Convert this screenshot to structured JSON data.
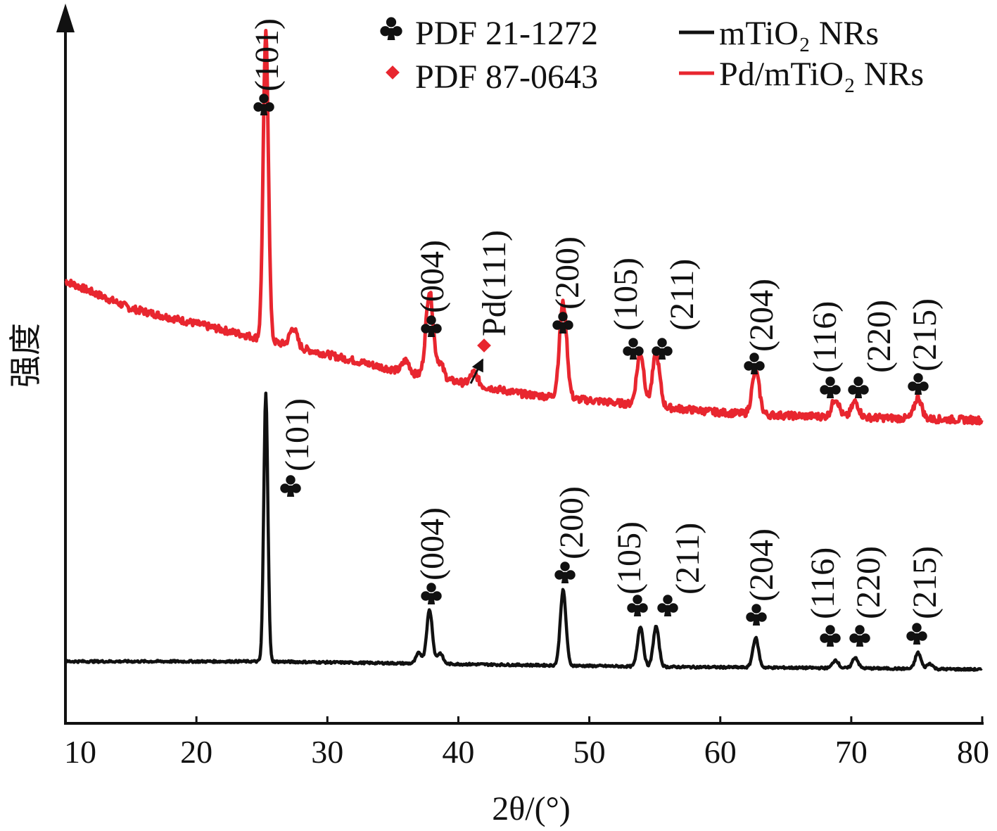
{
  "chart_data": {
    "type": "line",
    "xlabel": "2θ/(°)",
    "ylabel": "强度",
    "xlim": [
      10,
      80
    ],
    "x_ticks": [
      "10",
      "20",
      "30",
      "40",
      "50",
      "60",
      "70",
      "80"
    ],
    "y_ticks_shown": false,
    "grid": false,
    "legend": {
      "placement": "top-right",
      "markers": [
        {
          "label": "PDF 21-1272",
          "symbol": "club",
          "color": "#111111"
        },
        {
          "label": "PDF 87-0643",
          "symbol": "diamond",
          "color": "#e8262f"
        }
      ],
      "lines": [
        {
          "label": "mTiO₂ NRs",
          "color": "#111111"
        },
        {
          "label": "Pd/mTiO₂ NRs",
          "color": "#e8262f"
        }
      ]
    },
    "series": [
      {
        "name": "Pd/mTiO₂ NRs",
        "color": "#e8262f",
        "baseline_points": [
          [
            10,
            0.48
          ],
          [
            15,
            0.39
          ],
          [
            20,
            0.34
          ],
          [
            24,
            0.3
          ],
          [
            28,
            0.26
          ],
          [
            32,
            0.22
          ],
          [
            36,
            0.18
          ],
          [
            40,
            0.15
          ],
          [
            45,
            0.11
          ],
          [
            50,
            0.09
          ],
          [
            55,
            0.07
          ],
          [
            60,
            0.05
          ],
          [
            65,
            0.04
          ],
          [
            70,
            0.035
          ],
          [
            75,
            0.03
          ],
          [
            80,
            0.025
          ]
        ],
        "peaks": [
          {
            "two_theta": 25.3,
            "height": 1.0,
            "label": "(101)"
          },
          {
            "two_theta": 27.4,
            "height": 0.06
          },
          {
            "two_theta": 36.0,
            "height": 0.04
          },
          {
            "two_theta": 37.8,
            "height": 0.28,
            "label": "(004)"
          },
          {
            "two_theta": 38.6,
            "height": 0.05
          },
          {
            "two_theta": 41.2,
            "height": 0.04,
            "label": "Pd(111)"
          },
          {
            "two_theta": 48.0,
            "height": 0.31,
            "label": "(200)"
          },
          {
            "two_theta": 53.9,
            "height": 0.17,
            "label": "(105)"
          },
          {
            "two_theta": 55.1,
            "height": 0.17,
            "label": "(211)"
          },
          {
            "two_theta": 62.7,
            "height": 0.14,
            "label": "(204)"
          },
          {
            "two_theta": 68.8,
            "height": 0.06,
            "label": "(116)"
          },
          {
            "two_theta": 70.3,
            "height": 0.05,
            "label": "(220)"
          },
          {
            "two_theta": 75.1,
            "height": 0.07,
            "label": "(215)"
          }
        ]
      },
      {
        "name": "mTiO₂ NRs",
        "color": "#111111",
        "baseline_points": [
          [
            10,
            0.0
          ],
          [
            25,
            0.0
          ],
          [
            40,
            -0.01
          ],
          [
            55,
            -0.02
          ],
          [
            70,
            -0.025
          ],
          [
            80,
            -0.03
          ]
        ],
        "peaks": [
          {
            "two_theta": 25.3,
            "height": 1.0,
            "label": "(101)"
          },
          {
            "two_theta": 37.0,
            "height": 0.04
          },
          {
            "two_theta": 37.8,
            "height": 0.2,
            "label": "(004)"
          },
          {
            "two_theta": 38.6,
            "height": 0.04
          },
          {
            "two_theta": 48.0,
            "height": 0.28,
            "label": "(200)"
          },
          {
            "two_theta": 53.9,
            "height": 0.15,
            "label": "(105)"
          },
          {
            "two_theta": 55.1,
            "height": 0.15,
            "label": "(211)"
          },
          {
            "two_theta": 62.7,
            "height": 0.11,
            "label": "(204)"
          },
          {
            "two_theta": 68.8,
            "height": 0.03,
            "label": "(116)"
          },
          {
            "two_theta": 70.3,
            "height": 0.04,
            "label": "(220)"
          },
          {
            "two_theta": 75.1,
            "height": 0.06,
            "label": "(215)"
          },
          {
            "two_theta": 76.0,
            "height": 0.02
          }
        ]
      }
    ]
  }
}
